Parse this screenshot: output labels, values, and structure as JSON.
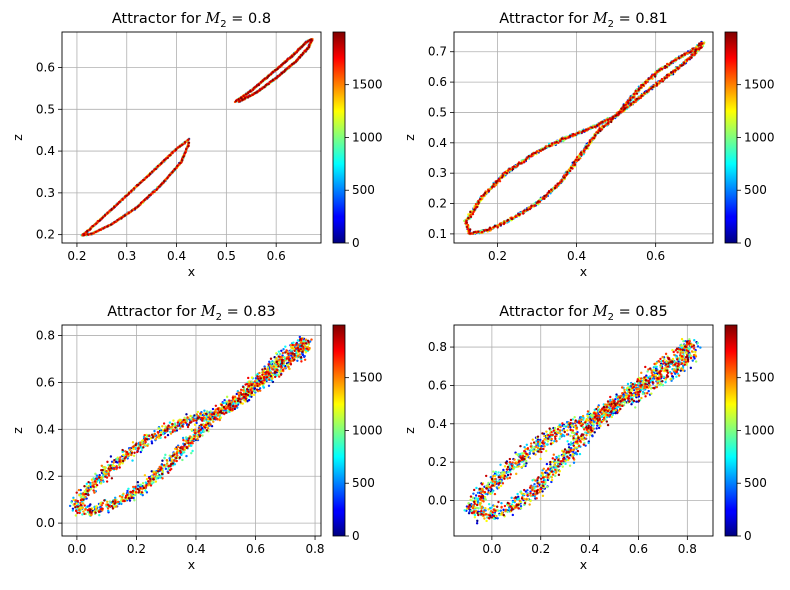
{
  "chart_data": [
    {
      "type": "scatter",
      "title_prefix": "Attractor for ",
      "title_var": "M",
      "title_sub": "2",
      "title_value": " = 0.8",
      "xlabel": "x",
      "ylabel": "z",
      "xlim": [
        0.17,
        0.69
      ],
      "ylim": [
        0.18,
        0.685
      ],
      "xticks": [
        0.2,
        0.3,
        0.4,
        0.5,
        0.6
      ],
      "xtick_labels": [
        "0.2",
        "0.3",
        "0.4",
        "0.5",
        "0.6"
      ],
      "yticks": [
        0.2,
        0.3,
        0.4,
        0.5,
        0.6
      ],
      "ytick_labels": [
        "0.2",
        "0.3",
        "0.4",
        "0.5",
        "0.6"
      ],
      "colorbar": {
        "cmap": "jet",
        "range": [
          0,
          1999
        ],
        "ticks": [
          0,
          500,
          1000,
          1500
        ],
        "tick_labels": [
          "0",
          "500",
          "1000",
          "1500"
        ]
      },
      "grid": true,
      "num_points": 2000,
      "color_by": "iteration index",
      "series": [
        {
          "shape": "loop",
          "points": [
            [
              0.425,
              0.428
            ],
            [
              0.4,
              0.405
            ],
            [
              0.36,
              0.36
            ],
            [
              0.31,
              0.305
            ],
            [
              0.26,
              0.25
            ],
            [
              0.225,
              0.212
            ],
            [
              0.21,
              0.198
            ],
            [
              0.23,
              0.202
            ],
            [
              0.27,
              0.225
            ],
            [
              0.32,
              0.265
            ],
            [
              0.37,
              0.32
            ],
            [
              0.41,
              0.375
            ],
            [
              0.425,
              0.42
            ]
          ]
        },
        {
          "shape": "loop",
          "points": [
            [
              0.518,
              0.518
            ],
            [
              0.55,
              0.545
            ],
            [
              0.59,
              0.585
            ],
            [
              0.63,
              0.625
            ],
            [
              0.66,
              0.66
            ],
            [
              0.672,
              0.668
            ],
            [
              0.665,
              0.648
            ],
            [
              0.64,
              0.615
            ],
            [
              0.6,
              0.575
            ],
            [
              0.56,
              0.54
            ],
            [
              0.525,
              0.518
            ]
          ]
        }
      ]
    },
    {
      "type": "scatter",
      "title_prefix": "Attractor for ",
      "title_var": "M",
      "title_sub": "2",
      "title_value": " = 0.81",
      "xlabel": "x",
      "ylabel": "z",
      "xlim": [
        0.09,
        0.745
      ],
      "ylim": [
        0.07,
        0.765
      ],
      "xticks": [
        0.2,
        0.4,
        0.6
      ],
      "xtick_labels": [
        "0.2",
        "0.4",
        "0.6"
      ],
      "yticks": [
        0.1,
        0.2,
        0.3,
        0.4,
        0.5,
        0.6,
        0.7
      ],
      "ytick_labels": [
        "0.1",
        "0.2",
        "0.3",
        "0.4",
        "0.5",
        "0.6",
        "0.7"
      ],
      "colorbar": {
        "cmap": "jet",
        "range": [
          0,
          1999
        ],
        "ticks": [
          0,
          500,
          1000,
          1500
        ],
        "tick_labels": [
          "0",
          "500",
          "1000",
          "1500"
        ]
      },
      "grid": true,
      "num_points": 2000,
      "color_by": "iteration index",
      "series": [
        {
          "shape": "loop",
          "points": [
            [
              0.5,
              0.49
            ],
            [
              0.44,
              0.45
            ],
            [
              0.37,
              0.415
            ],
            [
              0.3,
              0.37
            ],
            [
              0.22,
              0.3
            ],
            [
              0.16,
              0.22
            ],
            [
              0.12,
              0.14
            ],
            [
              0.13,
              0.1
            ],
            [
              0.17,
              0.11
            ],
            [
              0.23,
              0.145
            ],
            [
              0.3,
              0.2
            ],
            [
              0.36,
              0.27
            ],
            [
              0.41,
              0.36
            ],
            [
              0.45,
              0.43
            ],
            [
              0.5,
              0.49
            ],
            [
              0.56,
              0.55
            ],
            [
              0.62,
              0.61
            ],
            [
              0.67,
              0.66
            ],
            [
              0.71,
              0.71
            ],
            [
              0.72,
              0.73
            ],
            [
              0.7,
              0.71
            ],
            [
              0.66,
              0.68
            ],
            [
              0.61,
              0.64
            ],
            [
              0.56,
              0.58
            ],
            [
              0.53,
              0.535
            ],
            [
              0.5,
              0.49
            ]
          ]
        }
      ]
    },
    {
      "type": "scatter",
      "title_prefix": "Attractor for ",
      "title_var": "M",
      "title_sub": "2",
      "title_value": " = 0.83",
      "xlabel": "x",
      "ylabel": "z",
      "xlim": [
        -0.05,
        0.82
      ],
      "ylim": [
        -0.055,
        0.845
      ],
      "xticks": [
        0.0,
        0.2,
        0.4,
        0.6,
        0.8
      ],
      "xtick_labels": [
        "0.0",
        "0.2",
        "0.4",
        "0.6",
        "0.8"
      ],
      "yticks": [
        0.0,
        0.2,
        0.4,
        0.6,
        0.8
      ],
      "ytick_labels": [
        "0.0",
        "0.2",
        "0.4",
        "0.6",
        "0.8"
      ],
      "colorbar": {
        "cmap": "jet",
        "range": [
          0,
          1999
        ],
        "ticks": [
          0,
          500,
          1000,
          1500
        ],
        "tick_labels": [
          "0",
          "500",
          "1000",
          "1500"
        ]
      },
      "grid": true,
      "num_points": 2000,
      "color_by": "iteration index",
      "series": [
        {
          "shape": "loop",
          "points": [
            [
              0.48,
              0.47
            ],
            [
              0.4,
              0.45
            ],
            [
              0.3,
              0.4
            ],
            [
              0.2,
              0.32
            ],
            [
              0.1,
              0.22
            ],
            [
              0.02,
              0.12
            ],
            [
              0.0,
              0.06
            ],
            [
              0.05,
              0.05
            ],
            [
              0.12,
              0.08
            ],
            [
              0.22,
              0.15
            ],
            [
              0.3,
              0.24
            ],
            [
              0.37,
              0.34
            ],
            [
              0.43,
              0.42
            ],
            [
              0.48,
              0.47
            ],
            [
              0.54,
              0.53
            ],
            [
              0.6,
              0.6
            ],
            [
              0.66,
              0.67
            ],
            [
              0.72,
              0.74
            ],
            [
              0.77,
              0.78
            ],
            [
              0.76,
              0.73
            ],
            [
              0.7,
              0.68
            ],
            [
              0.62,
              0.6
            ],
            [
              0.55,
              0.53
            ],
            [
              0.48,
              0.47
            ]
          ]
        }
      ]
    },
    {
      "type": "scatter",
      "title_prefix": "Attractor for ",
      "title_var": "M",
      "title_sub": "2",
      "title_value": " = 0.85",
      "xlabel": "x",
      "ylabel": "z",
      "xlim": [
        -0.155,
        0.905
      ],
      "ylim": [
        -0.185,
        0.915
      ],
      "xticks": [
        0.0,
        0.2,
        0.4,
        0.6,
        0.8
      ],
      "xtick_labels": [
        "0.0",
        "0.2",
        "0.4",
        "0.6",
        "0.8"
      ],
      "yticks": [
        0.0,
        0.2,
        0.4,
        0.6,
        0.8
      ],
      "ytick_labels": [
        "0.0",
        "0.2",
        "0.4",
        "0.6",
        "0.8"
      ],
      "colorbar": {
        "cmap": "jet",
        "range": [
          0,
          1999
        ],
        "ticks": [
          0,
          500,
          1000,
          1500
        ],
        "tick_labels": [
          "0",
          "500",
          "1000",
          "1500"
        ]
      },
      "grid": true,
      "num_points": 2000,
      "color_by": "iteration index",
      "series": [
        {
          "shape": "loop",
          "points": [
            [
              0.45,
              0.45
            ],
            [
              0.35,
              0.4
            ],
            [
              0.22,
              0.32
            ],
            [
              0.1,
              0.2
            ],
            [
              0.0,
              0.08
            ],
            [
              -0.08,
              -0.02
            ],
            [
              -0.05,
              -0.08
            ],
            [
              0.05,
              -0.05
            ],
            [
              0.15,
              0.02
            ],
            [
              0.24,
              0.14
            ],
            [
              0.32,
              0.26
            ],
            [
              0.39,
              0.36
            ],
            [
              0.45,
              0.45
            ],
            [
              0.52,
              0.52
            ],
            [
              0.6,
              0.6
            ],
            [
              0.68,
              0.68
            ],
            [
              0.76,
              0.76
            ],
            [
              0.82,
              0.82
            ],
            [
              0.8,
              0.74
            ],
            [
              0.72,
              0.66
            ],
            [
              0.62,
              0.58
            ],
            [
              0.53,
              0.51
            ],
            [
              0.45,
              0.45
            ]
          ]
        }
      ]
    }
  ]
}
